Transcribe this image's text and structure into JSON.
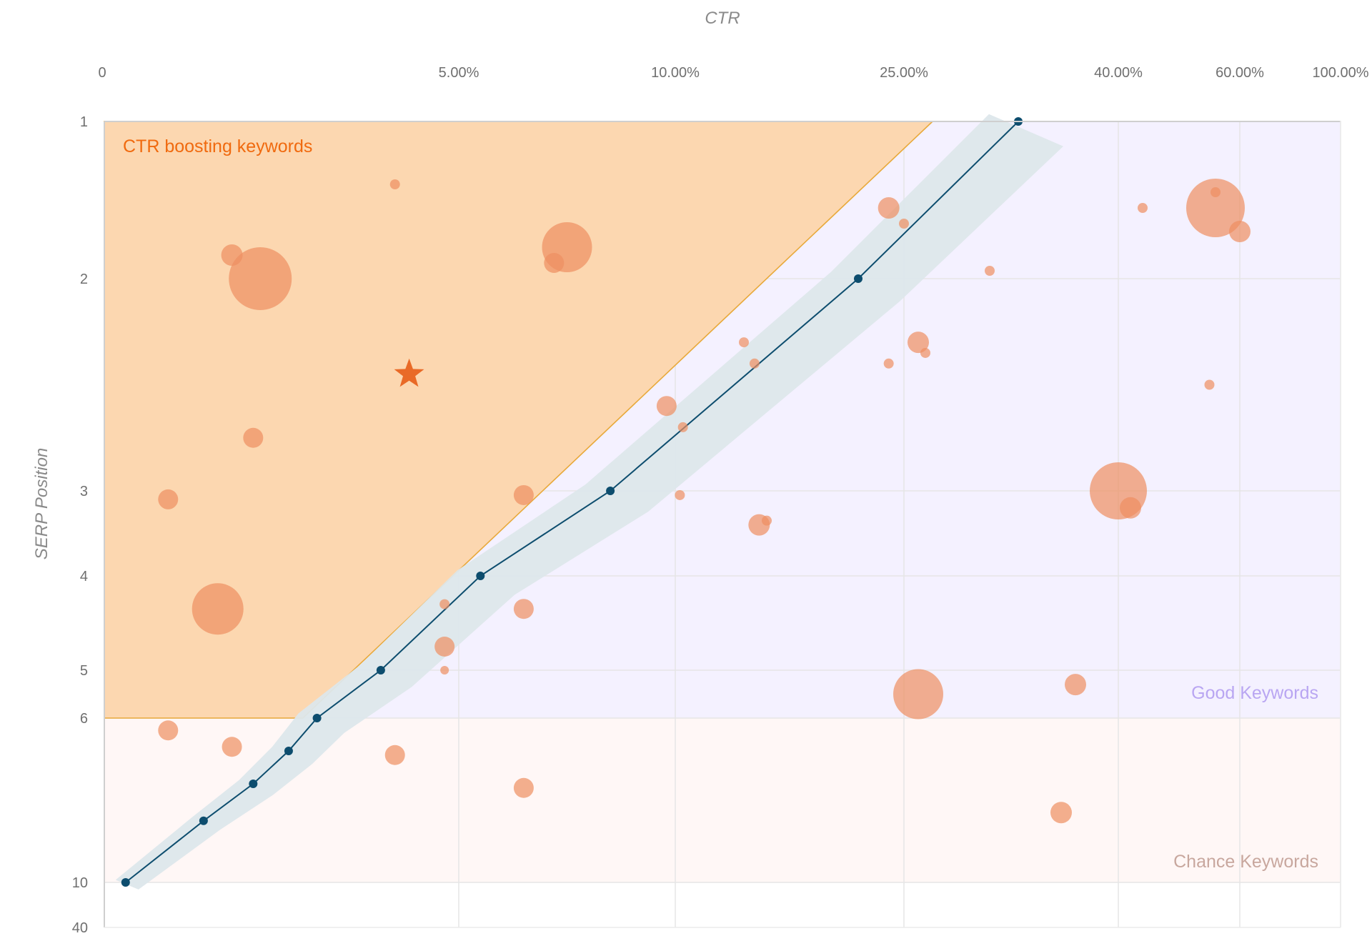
{
  "chart_data": {
    "type": "scatter",
    "title": "",
    "xlabel": "CTR",
    "ylabel": "SERP Position",
    "x_scale": "nonlinear",
    "y_scale": "nonlinear",
    "x_ticks": [
      {
        "value": 0,
        "label": "0"
      },
      {
        "value": 5,
        "label": "5.00%"
      },
      {
        "value": 10,
        "label": "10.00%"
      },
      {
        "value": 25,
        "label": "25.00%"
      },
      {
        "value": 40,
        "label": "40.00%"
      },
      {
        "value": 60,
        "label": "60.00%"
      },
      {
        "value": 100,
        "label": "100.00%"
      }
    ],
    "y_ticks": [
      {
        "value": 1,
        "label": "1"
      },
      {
        "value": 2,
        "label": "2"
      },
      {
        "value": 3,
        "label": "3"
      },
      {
        "value": 4,
        "label": "4"
      },
      {
        "value": 5,
        "label": "5"
      },
      {
        "value": 6,
        "label": "6"
      },
      {
        "value": 10,
        "label": "10"
      },
      {
        "value": 40,
        "label": "40"
      }
    ],
    "grid": true,
    "regions": [
      {
        "name": "CTR boosting keywords",
        "color": "#fcd7b0",
        "stroke": "#e8a93a",
        "text_color": "#f06a0f",
        "polygon": [
          [
            0,
            1
          ],
          [
            27,
            1
          ],
          [
            2.8,
            6
          ],
          [
            0,
            6
          ]
        ]
      },
      {
        "name": "Good Keywords",
        "color": "#f4f1ff",
        "text_color": "#b9a6f2",
        "y_range": [
          1,
          6
        ]
      },
      {
        "name": "Chance Keywords",
        "color": "#fff7f6",
        "text_color": "#c8a79e",
        "y_range": [
          6,
          10
        ]
      }
    ],
    "expected_ctr_curve": {
      "color": "#0d4d6e",
      "band_color": "#dde7eb",
      "points": [
        {
          "ctr": 0.3,
          "position": 10
        },
        {
          "ctr": 1.4,
          "position": 8.5
        },
        {
          "ctr": 2.1,
          "position": 7.6
        },
        {
          "ctr": 2.6,
          "position": 6.8
        },
        {
          "ctr": 3.0,
          "position": 6
        },
        {
          "ctr": 3.9,
          "position": 5
        },
        {
          "ctr": 5.5,
          "position": 4
        },
        {
          "ctr": 8.5,
          "position": 3
        },
        {
          "ctr": 22,
          "position": 2
        },
        {
          "ctr": 33,
          "position": 1
        }
      ]
    },
    "target_point": {
      "ctr": 4.3,
      "position": 2.45,
      "color": "#e96a27"
    },
    "bubble_color": "#ee8e61",
    "bubbles": [
      {
        "ctr": 4.1,
        "position": 1.4,
        "size": 7
      },
      {
        "ctr": 1.8,
        "position": 1.85,
        "size": 15
      },
      {
        "ctr": 2.2,
        "position": 2.0,
        "size": 44
      },
      {
        "ctr": 7.5,
        "position": 1.8,
        "size": 35
      },
      {
        "ctr": 7.2,
        "position": 1.9,
        "size": 14
      },
      {
        "ctr": 2.1,
        "position": 2.75,
        "size": 14
      },
      {
        "ctr": 0.9,
        "position": 3.1,
        "size": 14
      },
      {
        "ctr": 1.6,
        "position": 4.35,
        "size": 36
      },
      {
        "ctr": 0.9,
        "position": 6.3,
        "size": 14
      },
      {
        "ctr": 1.8,
        "position": 6.7,
        "size": 14
      },
      {
        "ctr": 4.1,
        "position": 6.9,
        "size": 14
      },
      {
        "ctr": 6.5,
        "position": 3.05,
        "size": 14
      },
      {
        "ctr": 4.8,
        "position": 4.3,
        "size": 7
      },
      {
        "ctr": 4.8,
        "position": 4.75,
        "size": 14
      },
      {
        "ctr": 4.8,
        "position": 5.0,
        "size": 6
      },
      {
        "ctr": 6.5,
        "position": 4.35,
        "size": 14
      },
      {
        "ctr": 6.5,
        "position": 7.7,
        "size": 14
      },
      {
        "ctr": 9.8,
        "position": 2.6,
        "size": 14
      },
      {
        "ctr": 10.5,
        "position": 2.7,
        "size": 7
      },
      {
        "ctr": 14.5,
        "position": 2.3,
        "size": 7
      },
      {
        "ctr": 15.2,
        "position": 2.4,
        "size": 7
      },
      {
        "ctr": 10.3,
        "position": 3.05,
        "size": 7
      },
      {
        "ctr": 15.5,
        "position": 3.4,
        "size": 15
      },
      {
        "ctr": 16,
        "position": 3.35,
        "size": 7
      },
      {
        "ctr": 24,
        "position": 1.55,
        "size": 15
      },
      {
        "ctr": 25,
        "position": 1.65,
        "size": 7
      },
      {
        "ctr": 24,
        "position": 2.4,
        "size": 7
      },
      {
        "ctr": 26,
        "position": 2.3,
        "size": 15
      },
      {
        "ctr": 26.5,
        "position": 2.35,
        "size": 7
      },
      {
        "ctr": 26,
        "position": 5.5,
        "size": 35
      },
      {
        "ctr": 31,
        "position": 1.95,
        "size": 7
      },
      {
        "ctr": 37,
        "position": 5.3,
        "size": 15
      },
      {
        "ctr": 36,
        "position": 8.3,
        "size": 15
      },
      {
        "ctr": 40,
        "position": 3.0,
        "size": 40
      },
      {
        "ctr": 42,
        "position": 3.2,
        "size": 15
      },
      {
        "ctr": 44,
        "position": 1.55,
        "size": 7
      },
      {
        "ctr": 56,
        "position": 1.55,
        "size": 41
      },
      {
        "ctr": 56,
        "position": 1.45,
        "size": 7
      },
      {
        "ctr": 60,
        "position": 1.7,
        "size": 15
      },
      {
        "ctr": 55,
        "position": 2.5,
        "size": 7
      }
    ]
  }
}
